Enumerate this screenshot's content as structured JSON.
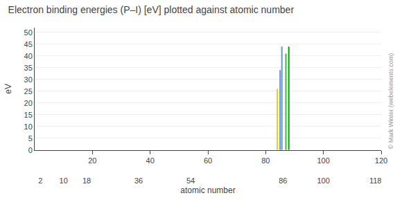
{
  "chart_data": {
    "type": "bar",
    "title": "Electron binding energies (P–I) [eV] plotted against atomic number",
    "ylabel": "eV",
    "xlabel": "atomic number",
    "x": [
      84,
      85,
      85.6,
      87,
      88
    ],
    "values": [
      26.0,
      34.0,
      44.0,
      41.0,
      44.0
    ],
    "colors": [
      "#ffcc00",
      "#6699cc",
      "#6699cc",
      "#44bb44",
      "#00aa00"
    ],
    "xlim": [
      0,
      120
    ],
    "ylim": [
      0,
      52
    ],
    "xticks": [
      20,
      40,
      60,
      80,
      100,
      120
    ],
    "x2ticks": [
      2,
      10,
      18,
      36,
      54,
      86,
      100,
      118
    ],
    "yticks": [
      0,
      5,
      10,
      15,
      20,
      25,
      30,
      35,
      40,
      45,
      50
    ],
    "grid": "y",
    "annotations": [
      "© Mark Winter (webelements.com)"
    ]
  }
}
